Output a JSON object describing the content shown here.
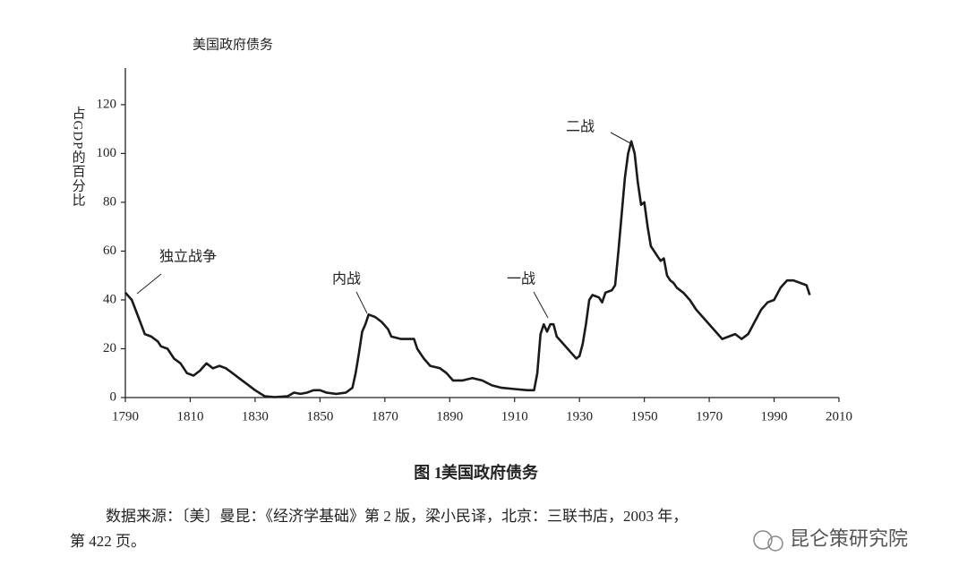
{
  "chart_data": {
    "type": "line",
    "title": "美国政府债务",
    "ylabel": "占GDP的百分比",
    "x": [
      1790,
      1792,
      1794,
      1796,
      1798,
      1800,
      1801,
      1803,
      1805,
      1807,
      1809,
      1811,
      1813,
      1815,
      1817,
      1819,
      1821,
      1823,
      1825,
      1827,
      1830,
      1833,
      1836,
      1840,
      1842,
      1844,
      1846,
      1848,
      1850,
      1852,
      1855,
      1858,
      1860,
      1861,
      1862,
      1863,
      1864,
      1865,
      1867,
      1869,
      1871,
      1872,
      1875,
      1879,
      1880,
      1882,
      1884,
      1887,
      1889,
      1891,
      1894,
      1897,
      1900,
      1903,
      1906,
      1910,
      1914,
      1916,
      1917,
      1918,
      1919,
      1920,
      1921,
      1922,
      1923,
      1925,
      1927,
      1929,
      1930,
      1931,
      1932,
      1933,
      1934,
      1936,
      1937,
      1938,
      1940,
      1941,
      1942,
      1943,
      1944,
      1945,
      1946,
      1947,
      1948,
      1949,
      1950,
      1951,
      1952,
      1953,
      1954,
      1955,
      1956,
      1957,
      1958,
      1959,
      1960,
      1962,
      1964,
      1966,
      1968,
      1970,
      1972,
      1974,
      1976,
      1978,
      1980,
      1982,
      1984,
      1986,
      1988,
      1990,
      1992,
      1994,
      1996,
      1998,
      2000,
      2001
    ],
    "values": [
      43,
      40,
      33,
      26,
      25,
      23,
      21,
      20,
      16,
      14,
      10,
      9,
      11,
      14,
      12,
      13,
      12,
      10,
      8,
      6,
      3,
      0.5,
      0.2,
      0.5,
      2,
      1.5,
      2,
      3,
      3,
      2,
      1.5,
      2,
      4,
      10,
      18,
      27,
      30,
      34,
      33,
      31,
      28,
      25,
      24,
      24,
      20,
      16,
      13,
      12,
      10,
      7,
      7,
      8,
      7,
      5,
      4,
      3.5,
      3,
      3,
      10,
      26,
      30,
      27,
      30,
      30,
      25,
      22,
      19,
      16,
      17,
      22,
      30,
      40,
      42,
      41,
      39,
      43,
      44,
      46,
      60,
      75,
      90,
      100,
      105,
      100,
      88,
      79,
      80,
      70,
      62,
      60,
      58,
      56,
      57,
      50,
      48,
      47,
      45,
      43,
      40,
      36,
      33,
      30,
      27,
      24,
      25,
      26,
      24,
      26,
      31,
      36,
      39,
      40,
      45,
      48,
      48,
      47,
      46,
      42
    ],
    "color": "#1a1a1a",
    "xlim": [
      1790,
      2010
    ],
    "xticks": [
      1790,
      1810,
      1830,
      1850,
      1870,
      1890,
      1910,
      1930,
      1950,
      1970,
      1990,
      2010
    ],
    "ylim": [
      0,
      135
    ],
    "yticks": [
      0,
      20,
      40,
      60,
      80,
      100,
      120
    ],
    "annotations": [
      "独立战争",
      "内战",
      "一战",
      "二战"
    ]
  },
  "caption": {
    "number": "图 1",
    "title": "美国政府债务"
  },
  "source": [
    "数据来源：〔美〕曼昆：《经济学基础》第 2 版，梁小民译，北京：三联书店，2003 年，",
    "第 422 页。"
  ],
  "watermark": "昆仑策研究院"
}
